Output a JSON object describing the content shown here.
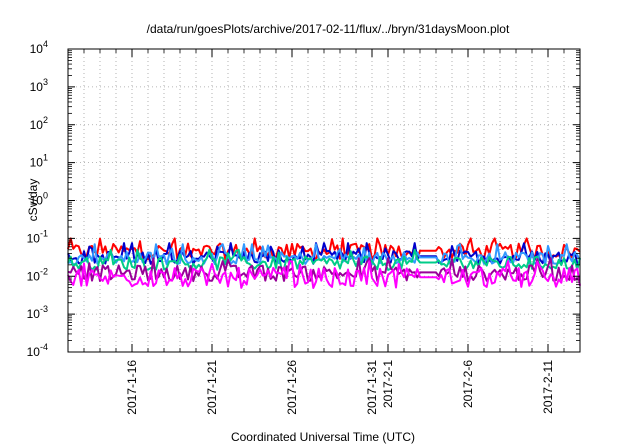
{
  "chart_data": {
    "type": "line",
    "title": "/data/run/goesPlots/archive/2017-02-11/flux/../bryn/31daysMoon.plot",
    "xlabel": "Coordinated Universal Time (UTC)",
    "ylabel": "cSv/day",
    "yscale": "log",
    "ylim": [
      0.0001,
      10000
    ],
    "xlim": [
      "2017-01-12",
      "2017-02-13"
    ],
    "grid": true,
    "y_ticks": [
      {
        "base": "10",
        "exp": "-4",
        "value": 0.0001
      },
      {
        "base": "10",
        "exp": "-3",
        "value": 0.001
      },
      {
        "base": "10",
        "exp": "-2",
        "value": 0.01
      },
      {
        "base": "10",
        "exp": "-1",
        "value": 0.1
      },
      {
        "base": "10",
        "exp": "0",
        "value": 1
      },
      {
        "base": "10",
        "exp": "1",
        "value": 10
      },
      {
        "base": "10",
        "exp": "2",
        "value": 100
      },
      {
        "base": "10",
        "exp": "3",
        "value": 1000
      },
      {
        "base": "10",
        "exp": "4",
        "value": 10000
      }
    ],
    "x_ticks": [
      {
        "label": "2017-1-16",
        "date": "2017-01-16"
      },
      {
        "label": "2017-1-21",
        "date": "2017-01-21"
      },
      {
        "label": "2017-1-26",
        "date": "2017-01-26"
      },
      {
        "label": "2017-1-31",
        "date": "2017-01-31"
      },
      {
        "label": "2017-2-1",
        "date": "2017-02-01"
      },
      {
        "label": "2017-2-6",
        "date": "2017-02-06"
      },
      {
        "label": "2017-2-11",
        "date": "2017-02-11"
      }
    ],
    "gap": {
      "start": "2017-02-03",
      "end": "2017-02-04"
    },
    "series": [
      {
        "color": "#ff0000",
        "typical": 0.045,
        "spread": 0.35,
        "peak": 0.1
      },
      {
        "color": "#0000cc",
        "typical": 0.032,
        "spread": 0.3,
        "peak": 0.075
      },
      {
        "color": "#3399ff",
        "typical": 0.03,
        "spread": 0.28,
        "peak": 0.07
      },
      {
        "color": "#00cc88",
        "typical": 0.022,
        "spread": 0.3,
        "peak": 0.05
      },
      {
        "color": "#990099",
        "typical": 0.012,
        "spread": 0.35,
        "peak": 0.03
      },
      {
        "color": "#ff00ff",
        "typical": 0.009,
        "spread": 0.45,
        "peak": 0.025
      }
    ]
  }
}
